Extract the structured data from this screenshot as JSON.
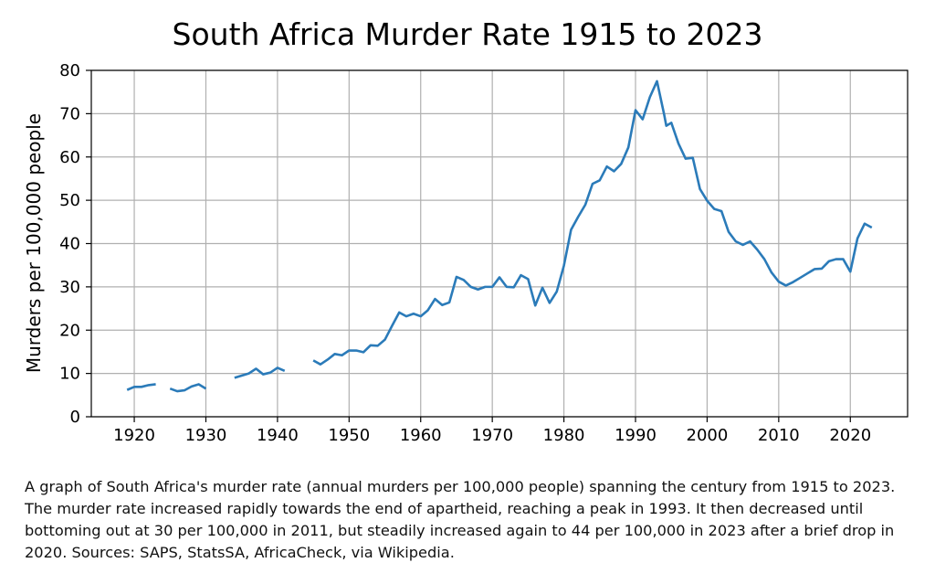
{
  "chart_data": {
    "type": "line",
    "title": "South Africa Murder Rate 1915 to 2023",
    "xlabel": "",
    "ylabel": "Murders per 100,000 people",
    "xlim": [
      1914,
      2028
    ],
    "ylim": [
      0,
      80
    ],
    "xticks": [
      1920,
      1930,
      1940,
      1950,
      1960,
      1970,
      1980,
      1990,
      2000,
      2010,
      2020
    ],
    "yticks": [
      0,
      10,
      20,
      30,
      40,
      50,
      60,
      70,
      80
    ],
    "grid": true,
    "line_color": "#2b7bb9",
    "series": [
      {
        "name": "",
        "segments": [
          [
            [
              1919,
              6.2
            ],
            [
              1920,
              6.9
            ],
            [
              1921,
              6.9
            ],
            [
              1922,
              7.3
            ],
            [
              1923,
              7.5
            ]
          ],
          [
            [
              1925,
              6.5
            ],
            [
              1926,
              5.9
            ],
            [
              1927,
              6.1
            ],
            [
              1928,
              7.0
            ],
            [
              1929,
              7.5
            ],
            [
              1930,
              6.5
            ]
          ],
          [
            [
              1934,
              9.0
            ],
            [
              1935,
              9.5
            ],
            [
              1936,
              10.0
            ],
            [
              1937,
              11.1
            ],
            [
              1938,
              9.8
            ],
            [
              1939,
              10.2
            ],
            [
              1940,
              11.3
            ],
            [
              1941,
              10.6
            ]
          ],
          [
            [
              1945,
              13.0
            ],
            [
              1946,
              12.1
            ],
            [
              1947,
              13.2
            ],
            [
              1948,
              14.5
            ],
            [
              1949,
              14.2
            ],
            [
              1950,
              15.3
            ],
            [
              1951,
              15.3
            ],
            [
              1952,
              14.9
            ],
            [
              1953,
              16.5
            ],
            [
              1954,
              16.4
            ],
            [
              1955,
              17.8
            ],
            [
              1956,
              21.0
            ],
            [
              1957,
              24.1
            ],
            [
              1958,
              23.2
            ],
            [
              1959,
              23.8
            ],
            [
              1960,
              23.2
            ],
            [
              1961,
              24.6
            ],
            [
              1962,
              27.2
            ],
            [
              1963,
              25.8
            ],
            [
              1964,
              26.4
            ],
            [
              1965,
              32.3
            ],
            [
              1966,
              31.6
            ],
            [
              1967,
              30.0
            ],
            [
              1968,
              29.4
            ],
            [
              1969,
              30.0
            ],
            [
              1970,
              30.0
            ],
            [
              1971,
              32.2
            ],
            [
              1972,
              30.0
            ],
            [
              1973,
              29.9
            ],
            [
              1974,
              32.7
            ],
            [
              1975,
              31.8
            ],
            [
              1976,
              25.7
            ],
            [
              1977,
              29.8
            ],
            [
              1978,
              26.3
            ],
            [
              1979,
              28.9
            ],
            [
              1980,
              34.9
            ],
            [
              1981,
              43.2
            ],
            [
              1982,
              46.2
            ],
            [
              1983,
              49.0
            ],
            [
              1984,
              53.8
            ],
            [
              1985,
              54.6
            ],
            [
              1986,
              57.8
            ],
            [
              1987,
              56.7
            ],
            [
              1988,
              58.4
            ],
            [
              1989,
              62.2
            ],
            [
              1990,
              70.8
            ],
            [
              1991,
              68.7
            ],
            [
              1992,
              73.8
            ],
            [
              1993,
              77.5
            ],
            [
              1994,
              69.8
            ],
            [
              1994.3,
              67.2
            ],
            [
              1995,
              67.9
            ],
            [
              1996,
              63.1
            ],
            [
              1997,
              59.6
            ],
            [
              1998,
              59.8
            ],
            [
              1999,
              52.6
            ],
            [
              2000,
              49.9
            ],
            [
              2001,
              48.0
            ],
            [
              2002,
              47.5
            ],
            [
              2003,
              42.7
            ],
            [
              2004,
              40.5
            ],
            [
              2005,
              39.7
            ],
            [
              2006,
              40.5
            ],
            [
              2007,
              38.6
            ],
            [
              2008,
              36.4
            ],
            [
              2009,
              33.3
            ],
            [
              2010,
              31.2
            ],
            [
              2011,
              30.3
            ],
            [
              2012,
              31.1
            ],
            [
              2013,
              32.1
            ],
            [
              2014,
              33.1
            ],
            [
              2015,
              34.1
            ],
            [
              2016,
              34.2
            ],
            [
              2017,
              35.9
            ],
            [
              2018,
              36.4
            ],
            [
              2019,
              36.4
            ],
            [
              2020,
              33.5
            ],
            [
              2021,
              41.2
            ],
            [
              2022,
              44.6
            ],
            [
              2023,
              43.7
            ]
          ]
        ]
      }
    ]
  },
  "caption": "A graph of South Africa's murder rate (annual murders per 100,000 people) spanning the century from 1915 to 2023. The murder rate increased rapidly towards the end of apartheid, reaching a peak in 1993. It then decreased until bottoming out at 30 per 100,000 in 2011, but steadily increased again to 44 per 100,000 in 2023 after a brief drop in 2020. Sources: SAPS, StatsSA, AfricaCheck, via Wikipedia."
}
